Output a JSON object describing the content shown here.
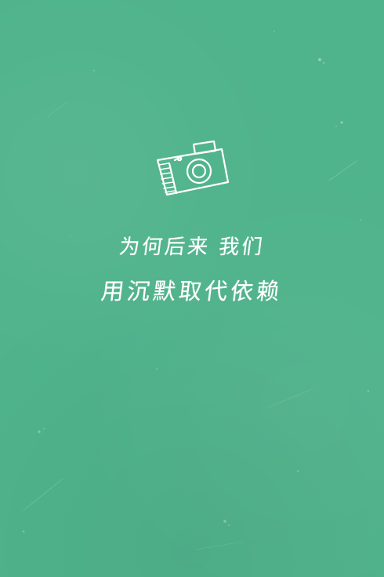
{
  "quote": {
    "line1": "为何后来 我们",
    "line2": "用沉默取代依赖"
  },
  "icon": "camera-icon",
  "colors": {
    "background": "#4fb38b",
    "text": "#ffffff"
  }
}
